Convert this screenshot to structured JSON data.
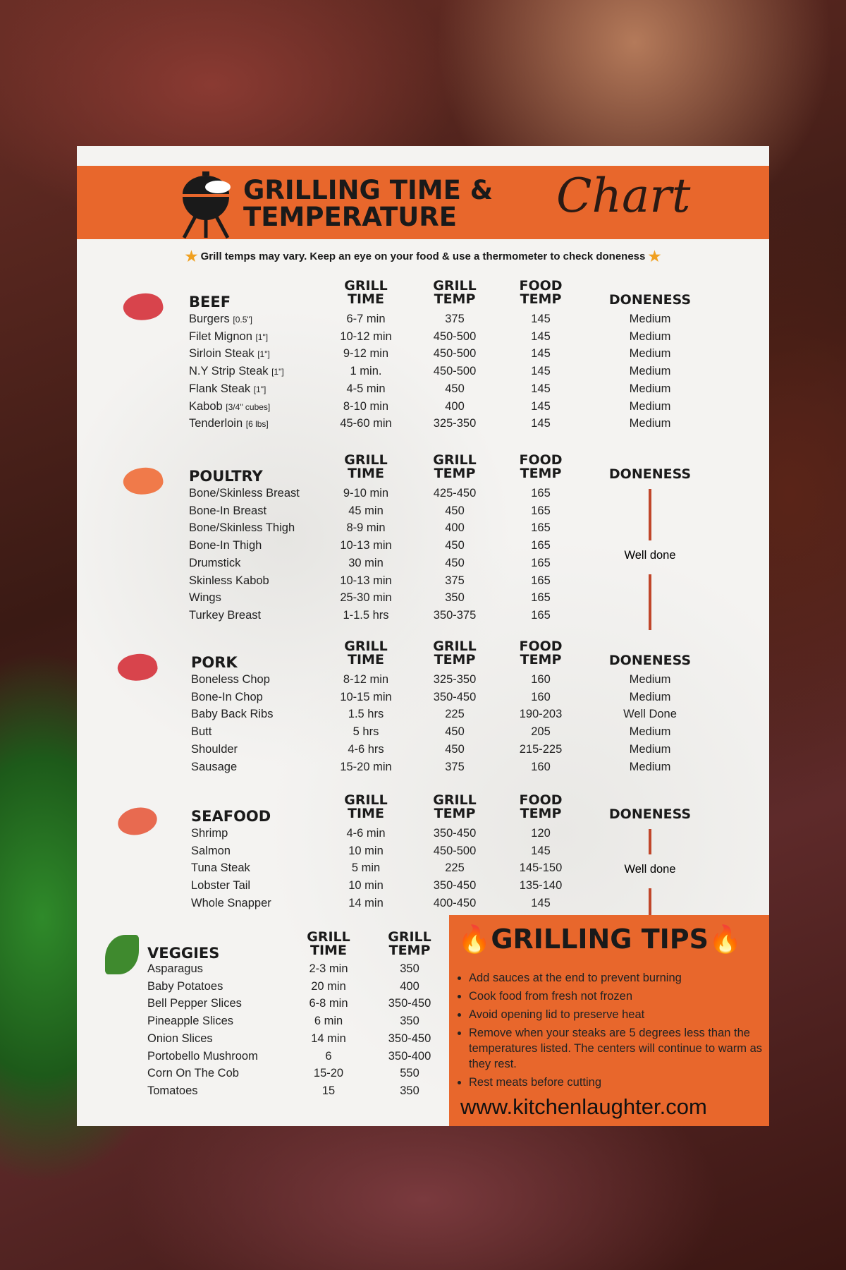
{
  "header": {
    "title_line1": "GRILLING TIME &",
    "title_line2": "TEMPERATURE",
    "title_script": "Chart",
    "tagline": "Grill temps may vary. Keep an eye on your food & use a thermometer to check doneness"
  },
  "columns": {
    "grill_time": "GRILL TIME",
    "grill_temp": "GRILL TEMP",
    "food_temp": "FOOD TEMP",
    "doneness": "DONENESS"
  },
  "colors": {
    "accent": "#e8672c",
    "line": "#c0462a"
  },
  "sections": [
    {
      "name": "BEEF",
      "icon": "steak-icon",
      "rows": [
        [
          "Burgers",
          "[0.5\"]",
          "6-7 min",
          "375",
          "145",
          "Medium"
        ],
        [
          "Filet Mignon",
          "[1\"]",
          "10-12 min",
          "450-500",
          "145",
          "Medium"
        ],
        [
          "Sirloin Steak",
          "[1\"]",
          "9-12 min",
          "450-500",
          "145",
          "Medium"
        ],
        [
          "N.Y Strip Steak",
          "[1\"]",
          "1 min.",
          "450-500",
          "145",
          "Medium"
        ],
        [
          "Flank Steak",
          "[1\"]",
          "4-5 min",
          "450",
          "145",
          "Medium"
        ],
        [
          "Kabob",
          "[3/4\" cubes]",
          "8-10 min",
          "400",
          "145",
          "Medium"
        ],
        [
          "Tenderloin",
          "[6 lbs]",
          "45-60 min",
          "325-350",
          "145",
          "Medium"
        ]
      ]
    },
    {
      "name": "POULTRY",
      "icon": "chicken-icon",
      "doneness": "Well done",
      "rows": [
        [
          "Bone/Skinless Breast",
          "",
          "9-10 min",
          "425-450",
          "165",
          ""
        ],
        [
          "Bone-In Breast",
          "",
          "45 min",
          "450",
          "165",
          ""
        ],
        [
          "Bone/Skinless Thigh",
          "",
          "8-9 min",
          "400",
          "165",
          ""
        ],
        [
          "Bone-In Thigh",
          "",
          "10-13 min",
          "450",
          "165",
          ""
        ],
        [
          "Drumstick",
          "",
          "30 min",
          "450",
          "165",
          ""
        ],
        [
          "Skinless Kabob",
          "",
          "10-13 min",
          "375",
          "165",
          ""
        ],
        [
          "Wings",
          "",
          "25-30 min",
          "350",
          "165",
          ""
        ],
        [
          "Turkey Breast",
          "",
          "1-1.5 hrs",
          "350-375",
          "165",
          ""
        ]
      ]
    },
    {
      "name": "PORK",
      "icon": "ham-icon",
      "rows": [
        [
          "Boneless Chop",
          "",
          "8-12 min",
          "325-350",
          "160",
          "Medium"
        ],
        [
          "Bone-In Chop",
          "",
          "10-15 min",
          "350-450",
          "160",
          "Medium"
        ],
        [
          "Baby Back Ribs",
          "",
          "1.5 hrs",
          "225",
          "190-203",
          "Well Done"
        ],
        [
          "Butt",
          "",
          "5 hrs",
          "450",
          "205",
          "Medium"
        ],
        [
          "Shoulder",
          "",
          "4-6 hrs",
          "450",
          "215-225",
          "Medium"
        ],
        [
          "Sausage",
          "",
          "15-20 min",
          "375",
          "160",
          "Medium"
        ]
      ]
    },
    {
      "name": "SEAFOOD",
      "icon": "salmon-steak-icon",
      "doneness": "Well done",
      "rows": [
        [
          "Shrimp",
          "",
          "4-6 min",
          "350-450",
          "120",
          ""
        ],
        [
          "Salmon",
          "",
          "10 min",
          "450-500",
          "145",
          ""
        ],
        [
          "Tuna Steak",
          "",
          "5 min",
          "225",
          "145-150",
          ""
        ],
        [
          "Lobster Tail",
          "",
          "10 min",
          "350-450",
          "135-140",
          ""
        ],
        [
          "Whole Snapper",
          "",
          "14 min",
          "400-450",
          "145",
          ""
        ]
      ]
    }
  ],
  "veggies": {
    "name": "VEGGIES",
    "icon": "leaf-icon",
    "rows": [
      [
        "Asparagus",
        "2-3 min",
        "350"
      ],
      [
        "Baby Potatoes",
        "20 min",
        "400"
      ],
      [
        "Bell Pepper Slices",
        "6-8 min",
        "350-450"
      ],
      [
        "Pineapple Slices",
        "6 min",
        "350"
      ],
      [
        "Onion Slices",
        "14 min",
        "350-450"
      ],
      [
        "Portobello Mushroom",
        "6",
        "350-400"
      ],
      [
        "Corn On The Cob",
        "15-20",
        "550"
      ],
      [
        "Tomatoes",
        "15",
        "350"
      ]
    ]
  },
  "tips": {
    "title": "GRILLING TIPS",
    "items": [
      "Add sauces at the end to prevent burning",
      "Cook food from fresh not frozen",
      "Avoid opening lid  to preserve heat",
      "Remove when your steaks are 5 degrees less than the temperatures listed. The centers will continue to warm as they rest.",
      "Rest meats before cutting"
    ],
    "url": "www.kitchenlaughter.com"
  }
}
